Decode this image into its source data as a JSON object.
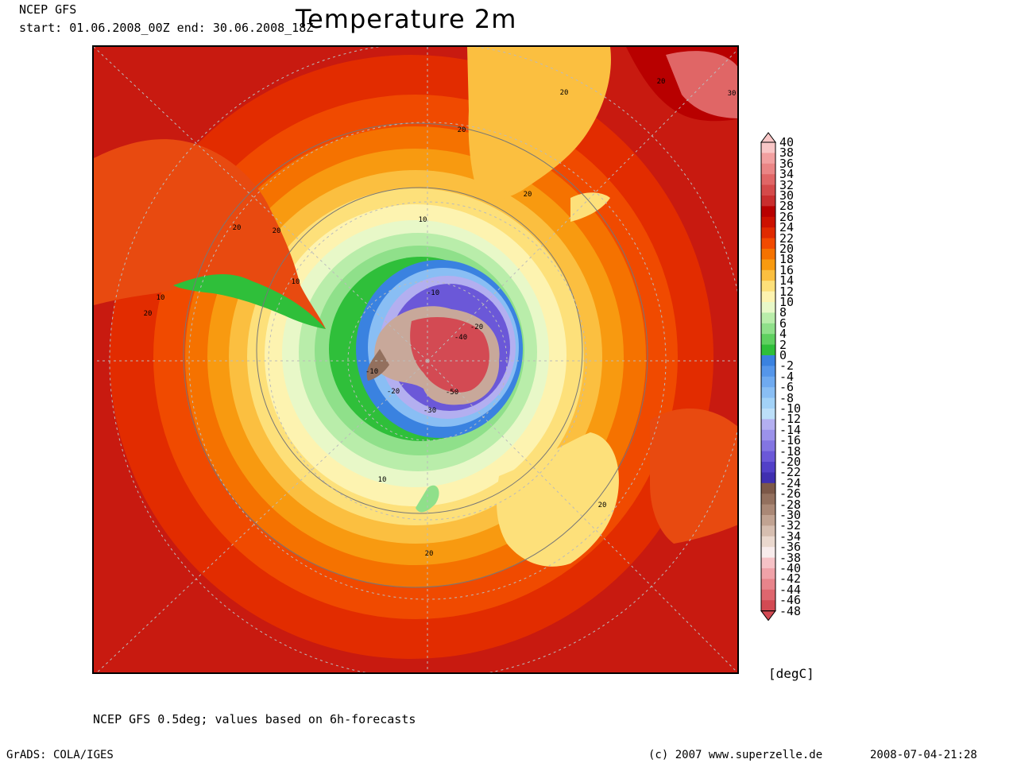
{
  "header": {
    "model": "NCEP GFS",
    "period": "start: 01.06.2008_00Z end: 30.06.2008_18Z",
    "title": "Temperature 2m"
  },
  "footer": {
    "note": "NCEP GFS 0.5deg; values based on 6h-forecasts",
    "software": "GrADS: COLA/IGES",
    "copyright": "(c) 2007 www.superzelle.de",
    "timestamp": "2008-07-04-21:28"
  },
  "legend": {
    "unit": "[degC]",
    "ticks": [
      "40",
      "38",
      "36",
      "34",
      "32",
      "30",
      "28",
      "26",
      "24",
      "22",
      "20",
      "18",
      "16",
      "14",
      "12",
      "10",
      "8",
      "6",
      "4",
      "2",
      "0",
      "-2",
      "-4",
      "-6",
      "-8",
      "-10",
      "-12",
      "-14",
      "-16",
      "-18",
      "-20",
      "-22",
      "-24",
      "-26",
      "-28",
      "-30",
      "-32",
      "-34",
      "-36",
      "-38",
      "-40",
      "-42",
      "-44",
      "-46",
      "-48"
    ],
    "colors": [
      "#f9c6c6",
      "#f2a0a0",
      "#ea8585",
      "#e06666",
      "#d44a4a",
      "#c92e2e",
      "#b80000",
      "#cc1100",
      "#e02a00",
      "#f24a00",
      "#f57200",
      "#f89a10",
      "#fbbf40",
      "#fde07a",
      "#fdf3b0",
      "#e8f8c8",
      "#b9edaa",
      "#8fe08a",
      "#5fd060",
      "#2fbf3a",
      "#3a82e0",
      "#5596ea",
      "#6faaf0",
      "#89bef4",
      "#a2d2f7",
      "#bcdff9",
      "#b3aff0",
      "#9b92ea",
      "#8375e2",
      "#6b58d8",
      "#5240c8",
      "#3f2fb0",
      "#7c5848",
      "#93705e",
      "#aa8876",
      "#c1a392",
      "#d6beb0",
      "#ead8ce",
      "#f8ecec",
      "#f6c2c6",
      "#f0a2a8",
      "#e8848b",
      "#de666e",
      "#d34a53"
    ],
    "top_triangle_color": "#f9c6c6",
    "bottom_triangle_color": "#d34a53"
  },
  "map": {
    "projection_center": "South Pole",
    "contour_labels": [
      "-10",
      "-20",
      "-40",
      "-10",
      "-20",
      "-50",
      "-30",
      "10",
      "10",
      "10",
      "10",
      "20",
      "20",
      "20",
      "20",
      "20",
      "20",
      "20",
      "20",
      "20",
      "30"
    ]
  }
}
